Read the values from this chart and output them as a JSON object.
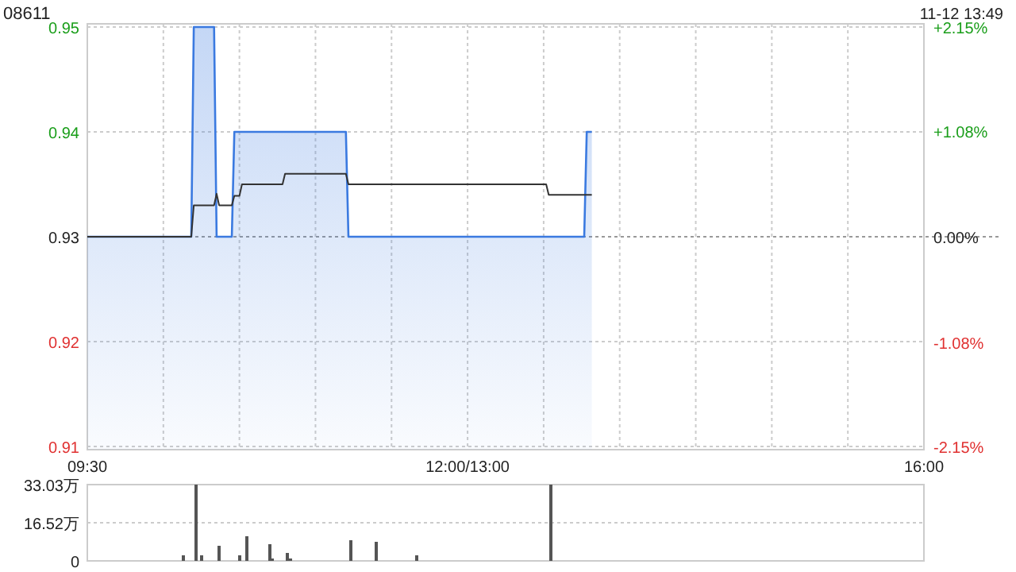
{
  "chart_data": [
    {
      "type": "line",
      "title": "08611",
      "annotations": [
        "11-12 13:49"
      ],
      "categories": [
        "09:30",
        null,
        null,
        null,
        null,
        null,
        null,
        null,
        null,
        null,
        null,
        null,
        null,
        null,
        null,
        null,
        null,
        null,
        null,
        null,
        null,
        null,
        null,
        null,
        null,
        null,
        null,
        null,
        null,
        null,
        null,
        null,
        null,
        null,
        null,
        null,
        null,
        null,
        null,
        null,
        null,
        null,
        null,
        null,
        null,
        null,
        null,
        null,
        null,
        null,
        null,
        null,
        null,
        null,
        null,
        null,
        null,
        null,
        null,
        null,
        null,
        null,
        null,
        null,
        null,
        null,
        null,
        null,
        null,
        null,
        null,
        null,
        null,
        null,
        null,
        null,
        null,
        null,
        null,
        null,
        null,
        null,
        null,
        null,
        null,
        null,
        null,
        null,
        null,
        null,
        null,
        null,
        null,
        null,
        null,
        null,
        null,
        null,
        null,
        null,
        null,
        null,
        null,
        null,
        null,
        null,
        null,
        null,
        null,
        null,
        null,
        null,
        null,
        null,
        null,
        null,
        null,
        null,
        null,
        null,
        null,
        null,
        null,
        null,
        null,
        null,
        null,
        null,
        null,
        null,
        null,
        null,
        null,
        null,
        null,
        null,
        null,
        null,
        null,
        null,
        null,
        null,
        null,
        null,
        null,
        null,
        null,
        null,
        null,
        null,
        "12:00/13:00",
        null,
        null,
        null,
        null,
        null,
        null,
        null,
        null,
        null,
        null,
        null,
        null,
        null,
        null,
        null,
        null,
        null,
        null,
        null,
        null,
        null,
        null,
        null,
        null,
        null,
        null,
        null,
        null,
        null,
        null,
        null,
        null,
        null,
        null,
        null,
        null,
        null,
        null,
        null,
        null,
        null,
        null,
        null,
        null,
        null,
        null,
        null,
        null,
        null,
        null,
        null,
        null,
        null,
        null,
        null,
        null,
        null,
        null,
        null,
        null,
        null,
        null,
        null,
        null,
        null,
        null,
        null,
        null,
        null,
        null,
        null,
        null,
        null,
        null,
        null,
        null,
        null,
        null,
        null,
        null,
        null,
        null,
        null,
        null,
        null,
        null,
        null,
        null,
        null,
        null,
        null,
        null,
        null,
        null,
        null,
        null,
        null,
        null,
        null,
        null,
        null,
        null,
        null,
        null,
        null,
        null,
        null,
        null,
        null,
        null,
        null,
        null,
        null,
        null,
        null,
        null,
        null,
        null,
        null,
        null,
        null,
        null,
        null,
        null,
        null,
        null,
        null,
        null,
        null,
        null,
        null,
        null,
        null,
        null,
        null,
        null,
        null,
        null,
        null,
        null,
        null,
        null,
        null,
        null,
        null,
        null,
        null,
        null,
        null,
        null,
        null,
        null,
        null,
        null,
        null,
        null,
        null,
        null,
        null,
        null,
        null,
        null,
        null,
        null,
        null,
        null,
        null,
        null,
        null,
        null,
        null,
        null,
        null,
        null,
        null,
        null,
        null,
        null,
        null,
        "16:00"
      ],
      "ylim": [
        0.9097,
        0.9503
      ],
      "yticks": [
        0.91,
        0.92,
        0.93,
        0.94,
        0.95
      ],
      "y2lim": [
        -2.18,
        2.18
      ],
      "y2ticks": [
        {
          "value": -2.15,
          "label": "-2.15%"
        },
        {
          "value": -1.08,
          "label": "-1.08%"
        },
        {
          "value": 0,
          "label": "0.00%"
        },
        {
          "value": 1.08,
          "label": "+1.08%"
        },
        {
          "value": 2.15,
          "label": "+2.15%"
        }
      ],
      "grid": true,
      "marker": "none",
      "ref_lines": [
        {
          "axis": "y",
          "value": 0.93,
          "color": "#999999",
          "line_style": "dotted"
        }
      ],
      "series": [
        {
          "type": "area",
          "color": "#3b7ae0",
          "values": [
            0.93,
            0.93,
            0.93,
            0.93,
            0.93,
            0.93,
            0.93,
            0.93,
            0.93,
            0.93,
            0.93,
            0.93,
            0.93,
            0.93,
            0.93,
            0.93,
            0.93,
            0.93,
            0.93,
            0.93,
            0.93,
            0.93,
            0.93,
            0.93,
            0.93,
            0.93,
            0.93,
            0.93,
            0.93,
            0.93,
            0.93,
            0.93,
            0.93,
            0.93,
            0.93,
            0.93,
            0.93,
            0.93,
            0.93,
            0.93,
            0.93,
            0.93,
            0.95,
            0.95,
            0.95,
            0.95,
            0.95,
            0.95,
            0.95,
            0.95,
            0.95,
            0.93,
            0.93,
            0.93,
            0.93,
            0.93,
            0.93,
            0.93,
            0.94,
            0.94,
            0.94,
            0.94,
            0.94,
            0.94,
            0.94,
            0.94,
            0.94,
            0.94,
            0.94,
            0.94,
            0.94,
            0.94,
            0.94,
            0.94,
            0.94,
            0.94,
            0.94,
            0.94,
            0.94,
            0.94,
            0.94,
            0.94,
            0.94,
            0.94,
            0.94,
            0.94,
            0.94,
            0.94,
            0.94,
            0.94,
            0.94,
            0.94,
            0.94,
            0.94,
            0.94,
            0.94,
            0.94,
            0.94,
            0.94,
            0.94,
            0.94,
            0.94,
            0.94,
            0.93,
            0.93,
            0.93,
            0.93,
            0.93,
            0.93,
            0.93,
            0.93,
            0.93,
            0.93,
            0.93,
            0.93,
            0.93,
            0.93,
            0.93,
            0.93,
            0.93,
            0.93,
            0.93,
            0.93,
            0.93,
            0.93,
            0.93,
            0.93,
            0.93,
            0.93,
            0.93,
            0.93,
            0.93,
            0.93,
            0.93,
            0.93,
            0.93,
            0.93,
            0.93,
            0.93,
            0.93,
            0.93,
            0.93,
            0.93,
            0.93,
            0.93,
            0.93,
            0.93,
            0.93,
            0.93,
            0.93,
            0.93,
            0.93,
            0.93,
            0.93,
            0.93,
            0.93,
            0.93,
            0.93,
            0.93,
            0.93,
            0.93,
            0.93,
            0.93,
            0.93,
            0.93,
            0.93,
            0.93,
            0.93,
            0.93,
            0.93,
            0.93,
            0.93,
            0.93,
            0.93,
            0.93,
            0.93,
            0.93,
            0.93,
            0.93,
            0.93,
            0.93,
            0.93,
            0.93,
            0.93,
            0.93,
            0.93,
            0.93,
            0.93,
            0.93,
            0.93,
            0.93,
            0.93,
            0.93,
            0.93,
            0.93,
            0.93,
            0.93,
            0.94,
            0.94,
            0.94,
            null,
            null,
            null,
            null,
            null,
            null,
            null,
            null,
            null,
            null,
            null,
            null,
            null,
            null,
            null,
            null,
            null,
            null,
            null,
            null,
            null,
            null,
            null,
            null,
            null,
            null,
            null,
            null,
            null,
            null,
            null,
            null,
            null,
            null,
            null,
            null,
            null,
            null,
            null,
            null,
            null,
            null,
            null,
            null,
            null,
            null,
            null,
            null,
            null,
            null,
            null,
            null,
            null,
            null,
            null,
            null,
            null,
            null,
            null,
            null,
            null,
            null,
            null,
            null,
            null,
            null,
            null,
            null,
            null,
            null,
            null,
            null,
            null,
            null,
            null,
            null,
            null,
            null,
            null,
            null,
            null,
            null,
            null,
            null,
            null,
            null,
            null,
            null,
            null,
            null,
            null,
            null,
            null,
            null,
            null,
            null,
            null,
            null,
            null,
            null,
            null,
            null,
            null,
            null,
            null,
            null,
            null,
            null,
            null,
            null,
            null,
            null,
            null,
            null,
            null,
            null,
            null,
            null,
            null,
            null,
            null,
            null,
            null,
            null,
            null,
            null,
            null,
            null,
            null,
            null,
            null
          ]
        },
        {
          "type": "line",
          "color": "#333333",
          "values": [
            0.93,
            0.93,
            0.93,
            0.93,
            0.93,
            0.93,
            0.93,
            0.93,
            0.93,
            0.93,
            0.93,
            0.93,
            0.93,
            0.93,
            0.93,
            0.93,
            0.93,
            0.93,
            0.93,
            0.93,
            0.93,
            0.93,
            0.93,
            0.93,
            0.93,
            0.93,
            0.93,
            0.93,
            0.93,
            0.93,
            0.93,
            0.93,
            0.93,
            0.93,
            0.93,
            0.93,
            0.93,
            0.93,
            0.93,
            0.93,
            0.93,
            0.93,
            0.933,
            0.933,
            0.933,
            0.933,
            0.933,
            0.933,
            0.933,
            0.933,
            0.933,
            0.9341,
            0.933,
            0.933,
            0.933,
            0.933,
            0.933,
            0.933,
            0.9339,
            0.9339,
            0.9339,
            0.935,
            0.935,
            0.935,
            0.935,
            0.935,
            0.935,
            0.935,
            0.935,
            0.935,
            0.935,
            0.935,
            0.935,
            0.935,
            0.935,
            0.935,
            0.935,
            0.935,
            0.936,
            0.936,
            0.936,
            0.936,
            0.936,
            0.936,
            0.936,
            0.936,
            0.936,
            0.936,
            0.936,
            0.936,
            0.936,
            0.936,
            0.936,
            0.936,
            0.936,
            0.936,
            0.936,
            0.936,
            0.936,
            0.936,
            0.936,
            0.936,
            0.936,
            0.935,
            0.935,
            0.935,
            0.935,
            0.935,
            0.935,
            0.935,
            0.935,
            0.935,
            0.935,
            0.935,
            0.935,
            0.935,
            0.935,
            0.935,
            0.935,
            0.935,
            0.935,
            0.935,
            0.935,
            0.935,
            0.935,
            0.935,
            0.935,
            0.935,
            0.935,
            0.935,
            0.935,
            0.935,
            0.935,
            0.935,
            0.935,
            0.935,
            0.935,
            0.935,
            0.935,
            0.935,
            0.935,
            0.935,
            0.935,
            0.935,
            0.935,
            0.935,
            0.935,
            0.935,
            0.935,
            0.935,
            0.935,
            0.935,
            0.935,
            0.935,
            0.935,
            0.935,
            0.935,
            0.935,
            0.935,
            0.935,
            0.935,
            0.935,
            0.935,
            0.935,
            0.935,
            0.935,
            0.935,
            0.935,
            0.935,
            0.935,
            0.935,
            0.935,
            0.935,
            0.935,
            0.935,
            0.935,
            0.935,
            0.935,
            0.935,
            0.935,
            0.935,
            0.935,
            0.934,
            0.934,
            0.934,
            0.934,
            0.934,
            0.934,
            0.934,
            0.934,
            0.934,
            0.934,
            0.934,
            0.934,
            0.934,
            0.934,
            0.934,
            0.934,
            0.934,
            0.934,
            null,
            null,
            null,
            null,
            null,
            null,
            null,
            null,
            null,
            null,
            null,
            null,
            null,
            null,
            null,
            null,
            null,
            null,
            null,
            null,
            null,
            null,
            null,
            null,
            null,
            null,
            null,
            null,
            null,
            null,
            null,
            null,
            null,
            null,
            null,
            null,
            null,
            null,
            null,
            null,
            null,
            null,
            null,
            null,
            null,
            null,
            null,
            null,
            null,
            null,
            null,
            null,
            null,
            null,
            null,
            null,
            null,
            null,
            null,
            null,
            null,
            null,
            null,
            null,
            null,
            null,
            null,
            null,
            null,
            null,
            null,
            null,
            null,
            null,
            null,
            null,
            null,
            null,
            null,
            null,
            null,
            null,
            null,
            null,
            null,
            null,
            null,
            null,
            null,
            null,
            null,
            null,
            null,
            null,
            null,
            null,
            null,
            null,
            null,
            null,
            null,
            null,
            null,
            null,
            null,
            null,
            null,
            null,
            null,
            null,
            null,
            null,
            null,
            null,
            null,
            null,
            null,
            null,
            null,
            null,
            null,
            null,
            null,
            null,
            null,
            null,
            null,
            null,
            null,
            null,
            null
          ]
        }
      ]
    },
    {
      "type": "bar",
      "color": "#555555",
      "tick_labels": "y",
      "grid": "y",
      "categories": [
        null,
        null,
        null,
        null,
        null,
        null,
        null,
        null,
        null,
        null,
        null,
        null,
        null,
        null,
        null,
        null,
        null,
        null,
        null,
        null,
        null,
        null,
        null,
        null,
        null,
        null,
        null,
        null,
        null,
        null,
        null,
        null,
        null,
        null,
        null,
        null,
        null,
        null,
        null,
        null,
        null,
        null,
        null,
        null,
        null,
        null,
        null,
        null,
        null,
        null,
        null,
        null,
        null,
        null,
        null,
        null,
        null,
        null,
        null,
        null,
        null,
        null,
        null,
        null,
        null,
        null,
        null,
        null,
        null,
        null,
        null,
        null,
        null,
        null,
        null,
        null,
        null,
        null,
        null,
        null,
        null,
        null,
        null,
        null,
        null,
        null,
        null,
        null,
        null,
        null,
        null,
        null,
        null,
        null,
        null,
        null,
        null,
        null,
        null,
        null,
        null,
        null,
        null,
        null,
        null,
        null,
        null,
        null,
        null,
        null,
        null,
        null,
        null,
        null,
        null,
        null,
        null,
        null,
        null,
        null,
        null,
        null,
        null,
        null,
        null,
        null,
        null,
        null,
        null,
        null,
        null,
        null,
        null,
        null,
        null,
        null,
        null,
        null,
        null,
        null,
        null,
        null,
        null,
        null,
        null,
        null,
        null,
        null,
        null,
        null,
        null,
        null,
        null,
        null,
        null,
        null,
        null,
        null,
        null,
        null,
        null,
        null,
        null,
        null,
        null,
        null,
        null,
        null,
        null,
        null,
        null,
        null,
        null,
        null,
        null,
        null,
        null,
        null,
        null,
        null,
        null,
        null,
        null,
        null,
        null,
        null,
        null,
        null,
        null,
        null,
        null,
        null,
        null,
        null,
        null,
        null,
        null,
        null,
        null,
        null,
        null,
        null,
        null,
        null,
        null,
        null,
        null,
        null,
        null,
        null,
        null,
        null,
        null,
        null,
        null,
        null,
        null,
        null,
        null,
        null,
        null,
        null,
        null,
        null,
        null,
        null,
        null,
        null,
        null,
        null,
        null,
        null,
        null,
        null,
        null,
        null,
        null,
        null,
        null,
        null,
        null,
        null,
        null,
        null,
        null,
        null,
        null,
        null,
        null,
        null,
        null,
        null,
        null,
        null,
        null,
        null,
        null,
        null,
        null,
        null,
        null,
        null,
        null,
        null,
        null,
        null,
        null,
        null,
        null,
        null,
        null,
        null,
        null,
        null,
        null,
        null,
        null,
        null,
        null,
        null,
        null,
        null,
        null,
        null,
        null,
        null,
        null,
        null,
        null,
        null,
        null,
        null,
        null,
        null,
        null,
        null,
        null,
        null,
        null,
        null,
        null,
        null,
        null,
        null,
        null,
        null,
        null,
        null,
        null,
        null,
        null,
        null,
        null,
        null,
        null,
        null,
        null,
        null,
        null,
        null,
        null,
        null,
        null,
        null,
        null,
        null,
        null,
        null,
        null,
        null,
        null
      ],
      "values": [
        0,
        0,
        0,
        0,
        0,
        0,
        0,
        0,
        0,
        0,
        0,
        0,
        0,
        0,
        0,
        0,
        0,
        0,
        0,
        0,
        0,
        0,
        0,
        0,
        0,
        0,
        0,
        0,
        0,
        0,
        0,
        0,
        0,
        0,
        0,
        0,
        0,
        0,
        2.3,
        0,
        0,
        0,
        0,
        33.03,
        0,
        2.3,
        0,
        0,
        0,
        0,
        0,
        0,
        6.4,
        0,
        0,
        0,
        0,
        0,
        0,
        0,
        2.3,
        0,
        0,
        10.5,
        0,
        0,
        0,
        0,
        0,
        0,
        0,
        0,
        7.3,
        1.1,
        0,
        0,
        0,
        0,
        0,
        3.6,
        0.9,
        0,
        0,
        0,
        0,
        0,
        0,
        0,
        0,
        0,
        0,
        0,
        0,
        0,
        0,
        0,
        0,
        0,
        0,
        0,
        0,
        0,
        0,
        0,
        9.1,
        0,
        0,
        0,
        0,
        0,
        0,
        0,
        0,
        0,
        8.4,
        0,
        0,
        0,
        0,
        0,
        0,
        0,
        0,
        0,
        0,
        0,
        0,
        0,
        0,
        0,
        2.3,
        0,
        0,
        0,
        0,
        0,
        0,
        0,
        0,
        0,
        0,
        0,
        0,
        0,
        0,
        0,
        0,
        0,
        0,
        0,
        0,
        0,
        0,
        0,
        0,
        0,
        0,
        0,
        0,
        0,
        0,
        0,
        0,
        0,
        0,
        0,
        0,
        0,
        0,
        0,
        0,
        0,
        0,
        0,
        0,
        0,
        0,
        0,
        0,
        0,
        0,
        0,
        0,
        33.03,
        0,
        0,
        0,
        0,
        0,
        0,
        0,
        0,
        0,
        0,
        0,
        0,
        0,
        0,
        0,
        0,
        null,
        null,
        null,
        null,
        null,
        null,
        null,
        null,
        null,
        null,
        null,
        null,
        null,
        null,
        null,
        null,
        null,
        null,
        null,
        null,
        null,
        null,
        null,
        null,
        null,
        null,
        null,
        null,
        null,
        null,
        null,
        null,
        null,
        null,
        null,
        null,
        null,
        null,
        null,
        null,
        null,
        null,
        null,
        null,
        null,
        null,
        null,
        null,
        null,
        null,
        null,
        null,
        null,
        null,
        null,
        null,
        null,
        null,
        null,
        null,
        null,
        null,
        null,
        null,
        null,
        null,
        null,
        null,
        null,
        null,
        null,
        null,
        null,
        null,
        null,
        null,
        null,
        null,
        null,
        null,
        null,
        null,
        null,
        null,
        null,
        null,
        null,
        null,
        null,
        null,
        null,
        null,
        null,
        null,
        null,
        null,
        null,
        null,
        null,
        null,
        null,
        null,
        null,
        null,
        null,
        null,
        null,
        null,
        null,
        null,
        null,
        null,
        null,
        null,
        null,
        null,
        null,
        null,
        null,
        null,
        null,
        null,
        null,
        null,
        null,
        null,
        null,
        null,
        null,
        null,
        null
      ],
      "ylim": [
        0,
        33.03
      ],
      "yticks": [
        0,
        {
          "value": 16.52,
          "label": "16.52万"
        },
        {
          "value": 33.03,
          "label": "33.03万"
        }
      ]
    }
  ]
}
